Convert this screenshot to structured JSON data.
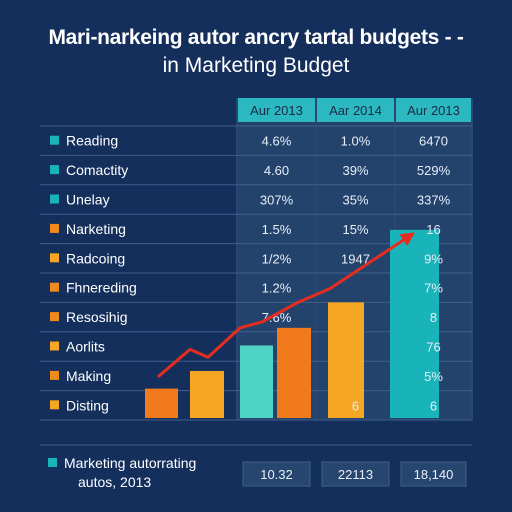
{
  "title_line1": "Mari-narkeing autor ancry tartal budgets - -",
  "title_line2": "in Marketing Budget",
  "chart_data": {
    "type": "table",
    "title": "Mari-narkeing autor ancry tartal budgets - - in Marketing Budget",
    "columns": [
      "Aur 2013",
      "Aar 2014",
      "Aur 2013"
    ],
    "rows": [
      {
        "label": "Reading",
        "color": "#19b3ba",
        "values": [
          "4.6%",
          "1.0%",
          "6470"
        ]
      },
      {
        "label": "Comactity",
        "color": "#19b3ba",
        "values": [
          "4.60",
          "39%",
          "529%"
        ]
      },
      {
        "label": "Unelay",
        "color": "#19b3ba",
        "values": [
          "307%",
          "35%",
          "337%"
        ]
      },
      {
        "label": "Narketing",
        "color": "#f08a1c",
        "values": [
          "1.5%",
          "15%",
          "16"
        ]
      },
      {
        "label": "Radcoing",
        "color": "#f5a623",
        "values": [
          "1/2%",
          "1947",
          "9%"
        ]
      },
      {
        "label": "Fhnereding",
        "color": "#f08a1c",
        "values": [
          "1.2%",
          "",
          "7%"
        ]
      },
      {
        "label": "Resosihig",
        "color": "#f08a1c",
        "values": [
          "7.6%",
          "",
          "8"
        ]
      },
      {
        "label": "Aorlits",
        "color": "#f5a623",
        "values": [
          "",
          "",
          "76"
        ]
      },
      {
        "label": "Making",
        "color": "#f08a1c",
        "values": [
          "",
          "",
          "5%"
        ]
      },
      {
        "label": "Disting",
        "color": "#f5a623",
        "values": [
          "",
          "6",
          "6"
        ]
      }
    ],
    "bars": [
      {
        "value": 15,
        "color": "#f07a1c"
      },
      {
        "value": 24,
        "color": "#f5a623"
      },
      {
        "value": 37,
        "color": "#4fd3c4"
      },
      {
        "value": 46,
        "color": "#f07a1c"
      },
      {
        "value": 59,
        "color": "#f5a623"
      },
      {
        "value": 96,
        "color": "#19b3ba"
      }
    ],
    "bars_ylim": [
      0,
      100
    ],
    "trend_line": {
      "color": "#e52d1f",
      "values": [
        21,
        35,
        31,
        46,
        49,
        59,
        66,
        93
      ]
    },
    "footer": {
      "label_line1": "Marketing autorrating",
      "label_line2": "autos, 2013",
      "color": "#19b3ba",
      "values": [
        "10.32",
        "22113",
        "18,140"
      ]
    }
  }
}
